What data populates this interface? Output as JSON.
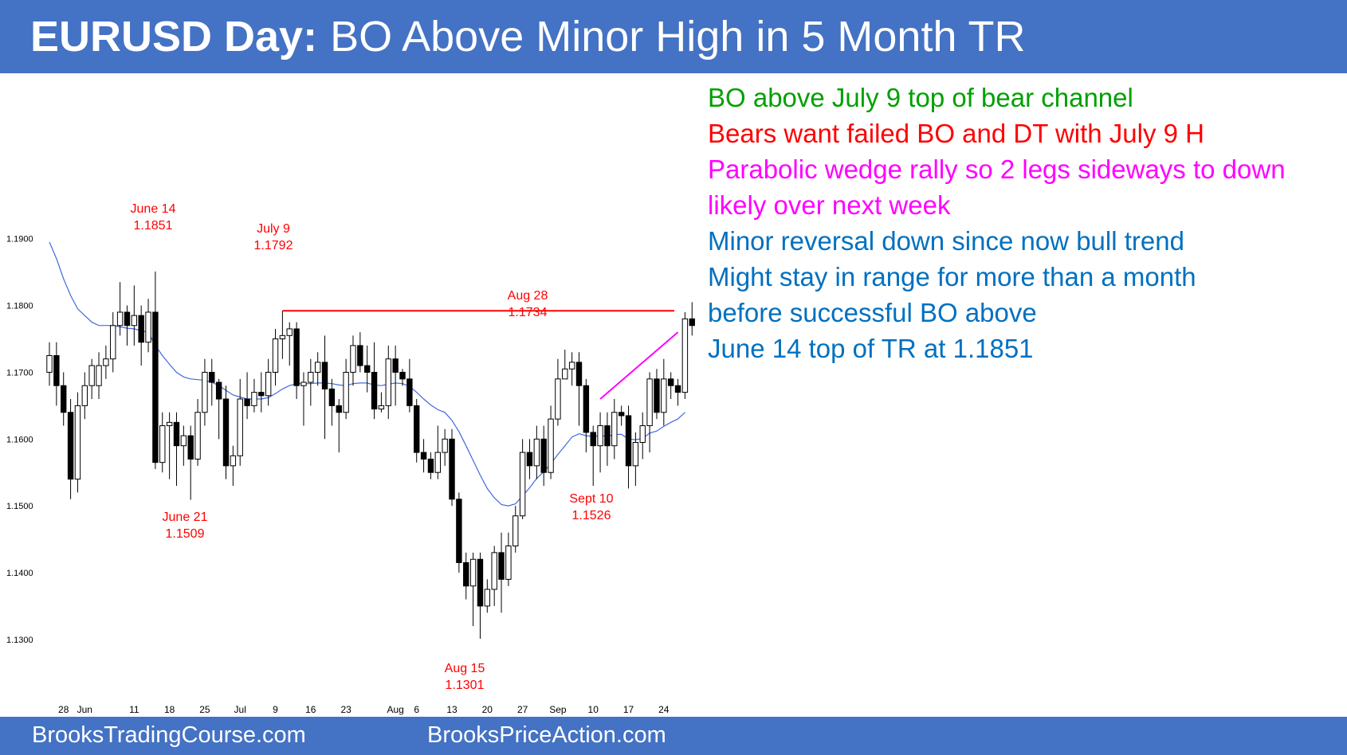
{
  "title": {
    "bold": "EURUSD Day:",
    "rest": "BO Above Minor High in 5 Month TR"
  },
  "footer": {
    "left": "BrooksTradingCourse.com",
    "right": "BrooksPriceAction.com"
  },
  "notes": [
    {
      "text": "BO above July 9 top of bear channel",
      "color": "#00a000"
    },
    {
      "text": "Bears want failed BO and DT with July 9 H",
      "color": "#ff0000"
    },
    {
      "text": "Parabolic wedge rally so 2 legs sideways to down",
      "color": "#ff00ff"
    },
    {
      "text": "likely over next week",
      "color": "#ff00ff"
    },
    {
      "text": "Minor reversal down since now bull trend",
      "color": "#0070c0"
    },
    {
      "text": "Might stay in range for more than a month",
      "color": "#0070c0"
    },
    {
      "text": "before successful BO above",
      "color": "#0070c0"
    },
    {
      "text": "June 14 top of TR at 1.1851",
      "color": "#0070c0"
    }
  ],
  "chart_data": {
    "type": "candlestick",
    "ylim": [
      1.1245,
      1.1945
    ],
    "yticks": [
      "1.1900",
      "1.1800",
      "1.1700",
      "1.1600",
      "1.1500",
      "1.1400",
      "1.1300"
    ],
    "xticks": [
      {
        "label": "28",
        "bar": 2
      },
      {
        "label": "Jun",
        "bar": 5
      },
      {
        "label": "11",
        "bar": 12
      },
      {
        "label": "18",
        "bar": 17
      },
      {
        "label": "25",
        "bar": 22
      },
      {
        "label": "Jul",
        "bar": 27
      },
      {
        "label": "9",
        "bar": 32
      },
      {
        "label": "16",
        "bar": 37
      },
      {
        "label": "23",
        "bar": 42
      },
      {
        "label": "Aug",
        "bar": 49
      },
      {
        "label": "6",
        "bar": 52
      },
      {
        "label": "13",
        "bar": 57
      },
      {
        "label": "20",
        "bar": 62
      },
      {
        "label": "27",
        "bar": 67
      },
      {
        "label": "Sep",
        "bar": 72
      },
      {
        "label": "10",
        "bar": 77
      },
      {
        "label": "17",
        "bar": 82
      },
      {
        "label": "24",
        "bar": 87
      }
    ],
    "candles": [
      [
        1.17,
        1.1725,
        1.1745,
        1.168
      ],
      [
        1.1725,
        1.168,
        1.1745,
        1.165
      ],
      [
        1.168,
        1.164,
        1.17,
        1.162
      ],
      [
        1.164,
        1.154,
        1.166,
        1.151
      ],
      [
        1.154,
        1.165,
        1.167,
        1.152
      ],
      [
        1.165,
        1.168,
        1.17,
        1.163
      ],
      [
        1.168,
        1.171,
        1.172,
        1.166
      ],
      [
        1.168,
        1.171,
        1.173,
        1.166
      ],
      [
        1.171,
        1.172,
        1.174,
        1.169
      ],
      [
        1.172,
        1.177,
        1.179,
        1.17
      ],
      [
        1.177,
        1.179,
        1.1835,
        1.1755
      ],
      [
        1.179,
        1.177,
        1.18,
        1.174
      ],
      [
        1.177,
        1.1785,
        1.183,
        1.174
      ],
      [
        1.1785,
        1.1745,
        1.18,
        1.171
      ],
      [
        1.1745,
        1.179,
        1.181,
        1.173
      ],
      [
        1.179,
        1.1565,
        1.1851,
        1.1555
      ],
      [
        1.1565,
        1.162,
        1.164,
        1.155
      ],
      [
        1.162,
        1.1625,
        1.164,
        1.154
      ],
      [
        1.1625,
        1.159,
        1.164,
        1.153
      ],
      [
        1.159,
        1.1605,
        1.162,
        1.156
      ],
      [
        1.1605,
        1.157,
        1.162,
        1.1509
      ],
      [
        1.157,
        1.164,
        1.166,
        1.156
      ],
      [
        1.164,
        1.17,
        1.172,
        1.162
      ],
      [
        1.17,
        1.1685,
        1.172,
        1.165
      ],
      [
        1.1685,
        1.166,
        1.169,
        1.16
      ],
      [
        1.166,
        1.156,
        1.168,
        1.154
      ],
      [
        1.156,
        1.1575,
        1.159,
        1.153
      ],
      [
        1.1575,
        1.166,
        1.169,
        1.156
      ],
      [
        1.166,
        1.165,
        1.17,
        1.163
      ],
      [
        1.165,
        1.167,
        1.169,
        1.164
      ],
      [
        1.167,
        1.1665,
        1.17,
        1.164
      ],
      [
        1.1665,
        1.17,
        1.172,
        1.165
      ],
      [
        1.17,
        1.175,
        1.1765,
        1.168
      ],
      [
        1.175,
        1.1755,
        1.1792,
        1.172
      ],
      [
        1.1755,
        1.1765,
        1.1775,
        1.171
      ],
      [
        1.1765,
        1.168,
        1.1775,
        1.166
      ],
      [
        1.168,
        1.1685,
        1.17,
        1.162
      ],
      [
        1.1685,
        1.17,
        1.172,
        1.165
      ],
      [
        1.17,
        1.1715,
        1.173,
        1.168
      ],
      [
        1.1715,
        1.1675,
        1.1755,
        1.16
      ],
      [
        1.1675,
        1.165,
        1.169,
        1.162
      ],
      [
        1.165,
        1.164,
        1.166,
        1.158
      ],
      [
        1.164,
        1.17,
        1.172,
        1.163
      ],
      [
        1.17,
        1.174,
        1.1755,
        1.168
      ],
      [
        1.174,
        1.171,
        1.176,
        1.17
      ],
      [
        1.171,
        1.17,
        1.174,
        1.167
      ],
      [
        1.17,
        1.1645,
        1.1745,
        1.163
      ],
      [
        1.1645,
        1.165,
        1.167,
        1.164
      ],
      [
        1.165,
        1.172,
        1.174,
        1.163
      ],
      [
        1.172,
        1.17,
        1.174,
        1.165
      ],
      [
        1.17,
        1.169,
        1.1705,
        1.168
      ],
      [
        1.169,
        1.165,
        1.172,
        1.164
      ],
      [
        1.165,
        1.158,
        1.166,
        1.1565
      ],
      [
        1.158,
        1.157,
        1.16,
        1.155
      ],
      [
        1.157,
        1.155,
        1.158,
        1.154
      ],
      [
        1.155,
        1.158,
        1.162,
        1.154
      ],
      [
        1.158,
        1.16,
        1.1615,
        1.156
      ],
      [
        1.16,
        1.151,
        1.1615,
        1.15
      ],
      [
        1.151,
        1.1415,
        1.152,
        1.14
      ],
      [
        1.1415,
        1.138,
        1.143,
        1.136
      ],
      [
        1.138,
        1.142,
        1.143,
        1.132
      ],
      [
        1.142,
        1.135,
        1.143,
        1.1301
      ],
      [
        1.135,
        1.1375,
        1.139,
        1.134
      ],
      [
        1.1375,
        1.143,
        1.144,
        1.135
      ],
      [
        1.143,
        1.139,
        1.146,
        1.134
      ],
      [
        1.139,
        1.144,
        1.146,
        1.138
      ],
      [
        1.144,
        1.1485,
        1.15,
        1.143
      ],
      [
        1.1485,
        1.158,
        1.16,
        1.148
      ],
      [
        1.158,
        1.156,
        1.16,
        1.154
      ],
      [
        1.156,
        1.16,
        1.162,
        1.154
      ],
      [
        1.16,
        1.155,
        1.162,
        1.153
      ],
      [
        1.155,
        1.163,
        1.165,
        1.154
      ],
      [
        1.163,
        1.169,
        1.172,
        1.162
      ],
      [
        1.169,
        1.1705,
        1.1734,
        1.169
      ],
      [
        1.1705,
        1.1715,
        1.173,
        1.168
      ],
      [
        1.1715,
        1.168,
        1.173,
        1.162
      ],
      [
        1.168,
        1.161,
        1.169,
        1.158
      ],
      [
        1.161,
        1.159,
        1.162,
        1.153
      ],
      [
        1.159,
        1.162,
        1.164,
        1.155
      ],
      [
        1.162,
        1.159,
        1.164,
        1.156
      ],
      [
        1.159,
        1.164,
        1.166,
        1.157
      ],
      [
        1.164,
        1.1635,
        1.165,
        1.162
      ],
      [
        1.1635,
        1.156,
        1.165,
        1.1526
      ],
      [
        1.156,
        1.1595,
        1.161,
        1.153
      ],
      [
        1.1595,
        1.162,
        1.164,
        1.157
      ],
      [
        1.162,
        1.169,
        1.17,
        1.158
      ],
      [
        1.169,
        1.164,
        1.1705,
        1.163
      ],
      [
        1.164,
        1.169,
        1.172,
        1.162
      ],
      [
        1.169,
        1.168,
        1.17,
        1.166
      ],
      [
        1.168,
        1.167,
        1.169,
        1.165
      ],
      [
        1.167,
        1.178,
        1.179,
        1.166
      ],
      [
        1.178,
        1.177,
        1.1805,
        1.1755
      ]
    ],
    "ema_20": [
      1.1895,
      1.187,
      1.184,
      1.1815,
      1.1795,
      1.1785,
      1.1775,
      1.177,
      1.177,
      1.177,
      1.1768,
      1.1766,
      1.1765,
      1.1762,
      1.176,
      1.174,
      1.1725,
      1.1712,
      1.17,
      1.1693,
      1.169,
      1.1689,
      1.1688,
      1.1685,
      1.168,
      1.1673,
      1.1666,
      1.1663,
      1.166,
      1.166,
      1.166,
      1.1662,
      1.1668,
      1.1675,
      1.168,
      1.1683,
      1.1683,
      1.1683,
      1.1684,
      1.1684,
      1.1683,
      1.1681,
      1.168,
      1.1683,
      1.1684,
      1.1684,
      1.1681,
      1.168,
      1.1682,
      1.1684,
      1.1683,
      1.1679,
      1.167,
      1.166,
      1.1651,
      1.1644,
      1.164,
      1.1628,
      1.1611,
      1.159,
      1.1568,
      1.1546,
      1.1526,
      1.1512,
      1.1502,
      1.15,
      1.1503,
      1.1515,
      1.1527,
      1.1541,
      1.1551,
      1.1563,
      1.1577,
      1.159,
      1.1603,
      1.1608,
      1.1605,
      1.1604,
      1.1605,
      1.1604,
      1.1607,
      1.1607,
      1.16,
      1.1599,
      1.1601,
      1.1609,
      1.1612,
      1.1619,
      1.1625,
      1.163,
      1.164
    ],
    "resistance_line": {
      "value": 1.1792,
      "from_bar": 33,
      "to_bar": 91
    },
    "wedge_line": {
      "from_bar": 78,
      "from_value": 1.166,
      "to_bar": 89,
      "to_value": 1.176
    },
    "annotations": [
      {
        "date": "June 14",
        "price": "1.1851"
      },
      {
        "date": "June 21",
        "price": "1.1509"
      },
      {
        "date": "July 9",
        "price": "1.1792"
      },
      {
        "date": "Aug 28",
        "price": "1.1734"
      },
      {
        "date": "Aug 15",
        "price": "1.1301"
      },
      {
        "date": "Sept 10",
        "price": "1.1526"
      }
    ]
  }
}
